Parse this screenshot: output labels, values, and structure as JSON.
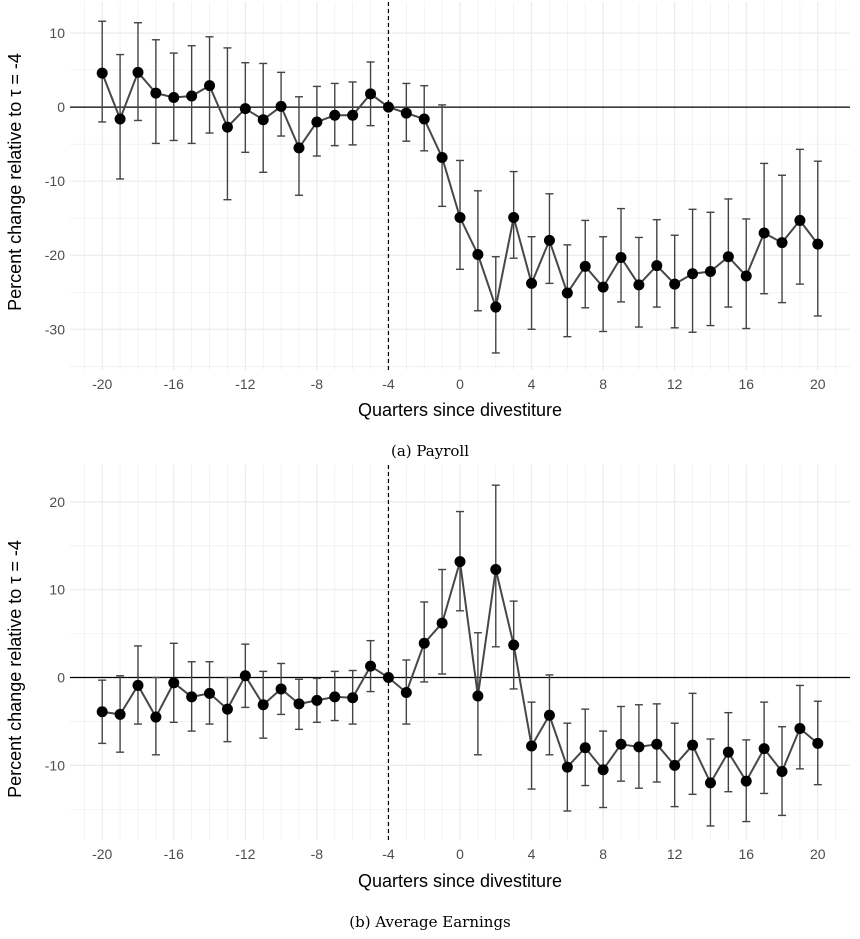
{
  "chart_data": [
    {
      "type": "line",
      "caption": "(a) Payroll",
      "xlabel": "Quarters since divestiture",
      "ylabel": "Percent change relative to τ = -4",
      "xlim": [
        -21.8,
        21.8
      ],
      "ylim": [
        -35.5,
        14.2
      ],
      "xticks": [
        -20,
        -16,
        -12,
        -8,
        -4,
        0,
        4,
        8,
        12,
        16,
        20
      ],
      "xtick_labels": [
        "-20",
        "-16",
        "-12",
        "-8",
        "-4",
        "0",
        "4",
        "8",
        "12",
        "16",
        "20"
      ],
      "yticks": [
        -30,
        -20,
        -10,
        0,
        10
      ],
      "ytick_labels": [
        "-30",
        "-20",
        "-10",
        "0",
        "10"
      ],
      "reference_vline": -4,
      "reference_hline": 0,
      "grid": true,
      "series": [
        {
          "x": [
            -20,
            -19,
            -18,
            -17,
            -16,
            -15,
            -14,
            -13,
            -12,
            -11,
            -10,
            -9,
            -8,
            -7,
            -6,
            -5,
            -4,
            -3,
            -2,
            -1,
            0,
            1,
            2,
            3,
            4,
            5,
            6,
            7,
            8,
            9,
            10,
            11,
            12,
            13,
            14,
            15,
            16,
            17,
            18,
            19,
            20
          ],
          "y": [
            4.6,
            -1.6,
            4.7,
            1.9,
            1.3,
            1.5,
            2.9,
            -2.7,
            -0.2,
            -1.7,
            0.1,
            -5.5,
            -2.0,
            -1.1,
            -1.1,
            1.8,
            0.0,
            -0.8,
            -1.6,
            -6.8,
            -14.9,
            -19.9,
            -27.0,
            -14.9,
            -23.8,
            -18.0,
            -25.1,
            -21.5,
            -24.3,
            -20.3,
            -24.0,
            -21.4,
            -23.9,
            -22.5,
            -22.2,
            -20.2,
            -22.8,
            -17.0,
            -18.3,
            -15.3,
            -18.5
          ],
          "lower": [
            -2.0,
            -9.7,
            -1.8,
            -4.9,
            -4.5,
            -4.9,
            -3.5,
            -12.5,
            -6.1,
            -8.8,
            -3.9,
            -11.9,
            -6.6,
            -5.2,
            -5.1,
            -2.5,
            0.0,
            -4.6,
            -5.9,
            -13.4,
            -21.9,
            -27.5,
            -33.2,
            -20.4,
            -30.0,
            -23.8,
            -31.0,
            -27.1,
            -30.3,
            -26.3,
            -29.7,
            -27.0,
            -29.8,
            -30.4,
            -29.5,
            -27.0,
            -29.9,
            -25.2,
            -26.4,
            -23.9,
            -28.2
          ],
          "upper": [
            11.6,
            7.1,
            11.4,
            9.1,
            7.3,
            8.3,
            9.5,
            8.0,
            6.0,
            5.9,
            4.7,
            1.4,
            2.8,
            3.2,
            3.4,
            6.1,
            0.0,
            3.2,
            2.9,
            0.3,
            -7.2,
            -11.3,
            -20.2,
            -8.7,
            -17.5,
            -11.7,
            -18.6,
            -15.3,
            -17.5,
            -13.7,
            -17.6,
            -15.2,
            -17.3,
            -13.8,
            -14.2,
            -12.4,
            -15.1,
            -7.6,
            -9.2,
            -5.7,
            -7.3
          ]
        }
      ]
    },
    {
      "type": "line",
      "caption": "(b) Average Earnings",
      "xlabel": "Quarters since divestiture",
      "ylabel": "Percent change relative to τ = -4",
      "xlim": [
        -21.8,
        21.8
      ],
      "ylim": [
        -18.5,
        24.2
      ],
      "xticks": [
        -20,
        -16,
        -12,
        -8,
        -4,
        0,
        4,
        8,
        12,
        16,
        20
      ],
      "xtick_labels": [
        "-20",
        "-16",
        "-12",
        "-8",
        "-4",
        "0",
        "4",
        "8",
        "12",
        "16",
        "20"
      ],
      "yticks": [
        -10,
        0,
        10,
        20
      ],
      "ytick_labels": [
        "-10",
        "0",
        "10",
        "20"
      ],
      "reference_vline": -4,
      "reference_hline": 0,
      "grid": true,
      "series": [
        {
          "x": [
            -20,
            -19,
            -18,
            -17,
            -16,
            -15,
            -14,
            -13,
            -12,
            -11,
            -10,
            -9,
            -8,
            -7,
            -6,
            -5,
            -4,
            -3,
            -2,
            -1,
            0,
            1,
            2,
            3,
            4,
            5,
            6,
            7,
            8,
            9,
            10,
            11,
            12,
            13,
            14,
            15,
            16,
            17,
            18,
            19,
            20
          ],
          "y": [
            -3.9,
            -4.2,
            -0.9,
            -4.5,
            -0.6,
            -2.2,
            -1.8,
            -3.6,
            0.2,
            -3.1,
            -1.3,
            -3.0,
            -2.6,
            -2.2,
            -2.3,
            1.3,
            0.0,
            -1.7,
            3.9,
            6.2,
            13.2,
            -2.1,
            12.3,
            3.7,
            -7.8,
            -4.3,
            -10.2,
            -8.0,
            -10.5,
            -7.6,
            -7.9,
            -7.6,
            -10.0,
            -7.7,
            -12.0,
            -8.5,
            -11.8,
            -8.1,
            -10.7,
            -5.8,
            -7.5
          ],
          "lower": [
            -7.5,
            -8.5,
            -5.3,
            -8.8,
            -5.1,
            -6.1,
            -5.3,
            -7.3,
            -3.4,
            -6.9,
            -4.2,
            -5.9,
            -5.1,
            -4.9,
            -5.3,
            -1.6,
            0.0,
            -5.3,
            -0.5,
            0.4,
            7.6,
            -8.8,
            3.5,
            -1.3,
            -12.7,
            -8.8,
            -15.2,
            -12.3,
            -14.8,
            -11.8,
            -12.6,
            -11.9,
            -14.7,
            -13.3,
            -16.9,
            -13.0,
            -16.4,
            -13.2,
            -15.7,
            -10.4,
            -12.2
          ],
          "upper": [
            -0.3,
            0.2,
            3.6,
            0.0,
            3.9,
            1.8,
            1.8,
            0.0,
            3.8,
            0.7,
            1.6,
            -0.2,
            -0.1,
            0.7,
            0.8,
            4.2,
            0.0,
            2.0,
            8.6,
            12.3,
            18.9,
            5.1,
            21.9,
            8.7,
            -2.8,
            0.3,
            -5.2,
            -3.6,
            -6.1,
            -3.3,
            -3.1,
            -3.0,
            -5.2,
            -1.8,
            -7.0,
            -4.0,
            -7.1,
            -2.8,
            -5.6,
            -0.9,
            -2.7
          ]
        }
      ]
    }
  ]
}
